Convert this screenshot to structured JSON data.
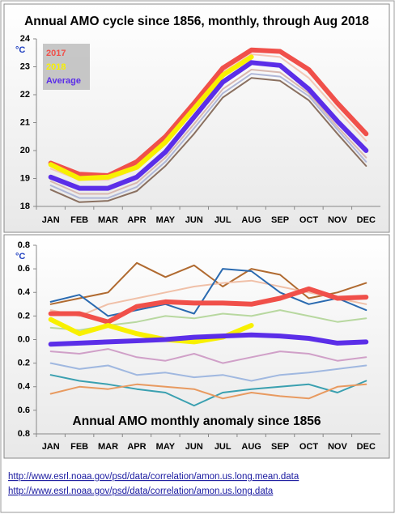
{
  "chart_data": [
    {
      "type": "line",
      "title": "Annual AMO cycle since 1856, monthly, through Aug 2018",
      "ylabel": "°C",
      "categories": [
        "JAN",
        "FEB",
        "MAR",
        "APR",
        "MAY",
        "JUN",
        "JUL",
        "AUG",
        "SEP",
        "OCT",
        "NOV",
        "DEC"
      ],
      "ylim": [
        18,
        24
      ],
      "yticks": [
        18,
        19,
        20,
        21,
        22,
        23,
        24
      ],
      "legend": "top-left",
      "series": [
        {
          "color": "#8a7060",
          "linewidth": 2,
          "values": [
            18.6,
            18.15,
            18.2,
            18.55,
            19.45,
            20.6,
            21.9,
            22.6,
            22.5,
            21.8,
            20.6,
            19.45
          ]
        },
        {
          "color": "#b0b8d8",
          "linewidth": 2,
          "values": [
            18.75,
            18.3,
            18.3,
            18.7,
            19.6,
            20.8,
            22.05,
            22.75,
            22.65,
            21.95,
            20.75,
            19.6
          ]
        },
        {
          "color": "#d8b8b0",
          "linewidth": 2,
          "values": [
            18.9,
            18.45,
            18.45,
            18.85,
            19.75,
            20.95,
            22.2,
            22.9,
            22.8,
            22.05,
            20.85,
            19.75
          ]
        },
        {
          "color": "#f4c8b8",
          "linewidth": 2,
          "values": [
            19.35,
            18.95,
            18.95,
            19.35,
            20.3,
            21.5,
            22.8,
            23.45,
            23.35,
            22.6,
            21.45,
            20.35
          ]
        },
        {
          "name": "2017",
          "color": "#f0504a",
          "linewidth": 6,
          "values": [
            19.55,
            19.15,
            19.1,
            19.6,
            20.5,
            21.7,
            22.95,
            23.6,
            23.55,
            22.9,
            21.7,
            20.6
          ]
        },
        {
          "name": "2018",
          "color": "#f8f000",
          "linewidth": 6,
          "values": [
            19.5,
            19.0,
            19.05,
            19.4,
            20.3,
            21.5,
            22.7,
            23.35,
            null,
            null,
            null,
            null
          ]
        },
        {
          "name": "Average",
          "color": "#5b2ee8",
          "linewidth": 6,
          "values": [
            19.05,
            18.65,
            18.65,
            19.05,
            19.95,
            21.2,
            22.45,
            23.15,
            23.05,
            22.2,
            21.05,
            20.0
          ]
        }
      ]
    },
    {
      "type": "line",
      "title": "Annual AMO monthly anomaly since 1856",
      "ylabel": "°C",
      "categories": [
        "JAN",
        "FEB",
        "MAR",
        "APR",
        "MAY",
        "JUN",
        "JUL",
        "AUG",
        "SEP",
        "OCT",
        "NOV",
        "DEC"
      ],
      "ylim": [
        -0.8,
        0.8
      ],
      "yticks": [
        {
          "value": -0.8,
          "label": "0.8"
        },
        {
          "value": -0.6,
          "label": "0.6"
        },
        {
          "value": -0.4,
          "label": "0.4"
        },
        {
          "value": -0.2,
          "label": "0.2"
        },
        {
          "value": 0,
          "label": "0.0"
        },
        0.2,
        0.4,
        0.6,
        0.8
      ],
      "series": [
        {
          "color": "#b06a30",
          "linewidth": 2,
          "values": [
            0.3,
            0.35,
            0.4,
            0.65,
            0.53,
            0.63,
            0.45,
            0.6,
            0.55,
            0.35,
            0.4,
            0.48
          ]
        },
        {
          "color": "#3aa0b0",
          "linewidth": 2,
          "values": [
            -0.3,
            -0.35,
            -0.38,
            -0.42,
            -0.45,
            -0.56,
            -0.45,
            -0.42,
            -0.4,
            -0.38,
            -0.45,
            -0.35
          ]
        },
        {
          "color": "#e89a60",
          "linewidth": 2,
          "values": [
            -0.46,
            -0.4,
            -0.42,
            -0.38,
            -0.4,
            -0.42,
            -0.5,
            -0.45,
            -0.48,
            -0.5,
            -0.4,
            -0.38
          ]
        },
        {
          "color": "#f0c0a8",
          "linewidth": 2,
          "values": [
            0.25,
            0.2,
            0.3,
            0.35,
            0.4,
            0.45,
            0.48,
            0.5,
            0.45,
            0.4,
            0.35,
            0.3
          ]
        },
        {
          "color": "#a0b8e0",
          "linewidth": 2,
          "values": [
            -0.2,
            -0.25,
            -0.22,
            -0.3,
            -0.28,
            -0.32,
            -0.3,
            -0.35,
            -0.3,
            -0.28,
            -0.25,
            -0.22
          ]
        },
        {
          "color": "#b8d8a0",
          "linewidth": 2,
          "values": [
            0.1,
            0.08,
            0.12,
            0.15,
            0.2,
            0.18,
            0.22,
            0.2,
            0.25,
            0.2,
            0.15,
            0.18
          ]
        },
        {
          "color": "#d0a0c8",
          "linewidth": 2,
          "values": [
            -0.1,
            -0.12,
            -0.08,
            -0.15,
            -0.18,
            -0.12,
            -0.2,
            -0.15,
            -0.1,
            -0.12,
            -0.18,
            -0.15
          ]
        },
        {
          "color": "#2a6ab0",
          "linewidth": 2,
          "values": [
            0.32,
            0.38,
            0.2,
            0.25,
            0.3,
            0.22,
            0.6,
            0.58,
            0.4,
            0.3,
            0.35,
            0.25
          ]
        },
        {
          "color": "#f0504a",
          "linewidth": 6,
          "values": [
            0.22,
            0.22,
            0.15,
            0.28,
            0.32,
            0.31,
            0.31,
            0.3,
            0.35,
            0.43,
            0.35,
            0.36
          ]
        },
        {
          "color": "#f8f000",
          "linewidth": 6,
          "values": [
            0.17,
            0.05,
            0.12,
            0.05,
            0.0,
            -0.02,
            0.02,
            0.12,
            null,
            null,
            null,
            null
          ]
        },
        {
          "color": "#5b2ee8",
          "linewidth": 6,
          "values": [
            -0.04,
            -0.03,
            -0.02,
            -0.01,
            0.0,
            0.02,
            0.03,
            0.04,
            0.03,
            0.01,
            -0.03,
            -0.02
          ]
        }
      ]
    }
  ],
  "links": [
    "http://www.esrl.noaa.gov/psd/data/correlation/amon.us.long.mean.data",
    "http://www.esrl.noaa.gov/psd/data/correlation/amon.us.long.data"
  ]
}
